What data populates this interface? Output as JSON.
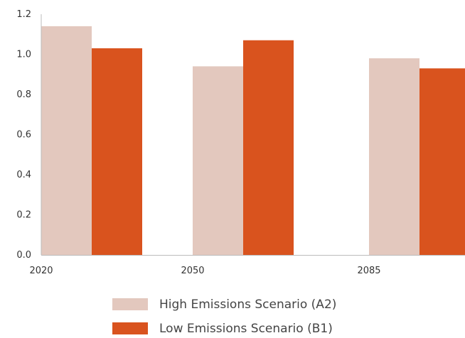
{
  "chart_data": {
    "type": "bar",
    "categories": [
      "2020",
      "2050",
      "2085"
    ],
    "series": [
      {
        "name": "High Emissions Scenario (A2)",
        "values": [
          1.14,
          0.94,
          0.98
        ],
        "color": "#e3c8be"
      },
      {
        "name": "Low Emissions Scenario (B1)",
        "values": [
          1.03,
          1.07,
          0.93
        ],
        "color": "#d9531e"
      }
    ],
    "yticks": [
      "0.0",
      "0.2",
      "0.4",
      "0.6",
      "0.8",
      "1.0",
      "1.2"
    ],
    "ylim": [
      0,
      1.2
    ],
    "grid": false,
    "legend_position": "bottom-center",
    "title": "",
    "xlabel": "",
    "ylabel": ""
  }
}
